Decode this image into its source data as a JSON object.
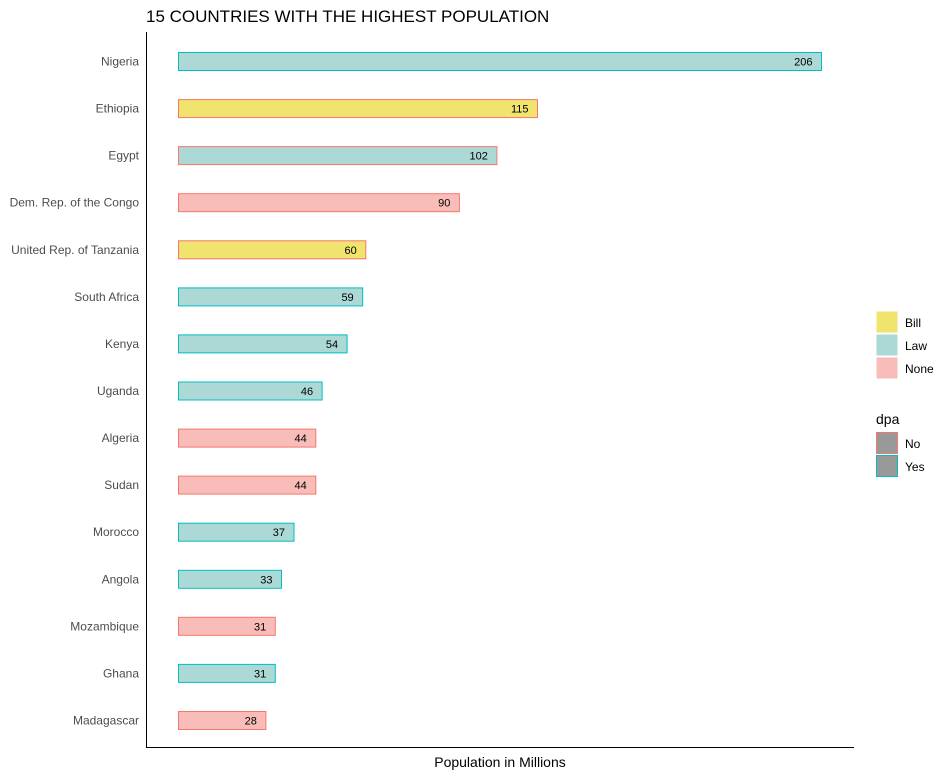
{
  "chart_data": {
    "type": "bar",
    "orientation": "horizontal",
    "title": "15 COUNTRIES WITH THE HIGHEST POPULATION",
    "xlabel": "Population in Millions",
    "ylabel": "",
    "xlim": [
      0,
      220
    ],
    "grid": false,
    "legend_position": "right",
    "categories": [
      "Nigeria",
      "Ethiopia",
      "Egypt",
      "Dem. Rep. of the Congo",
      "United Rep. of Tanzania",
      "South Africa",
      "Kenya",
      "Uganda",
      "Algeria",
      "Sudan",
      "Morocco",
      "Angola",
      "Mozambique",
      "Ghana",
      "Madagascar"
    ],
    "values": [
      206,
      115,
      102,
      90,
      60,
      59,
      54,
      46,
      44,
      44,
      37,
      33,
      31,
      31,
      28
    ],
    "fill_group": [
      "Law",
      "Bill",
      "Law",
      "None",
      "Bill",
      "Law",
      "Law",
      "Law",
      "None",
      "None",
      "Law",
      "Law",
      "None",
      "Law",
      "None"
    ],
    "outline_group": [
      "Yes",
      "No",
      "No",
      "No",
      "No",
      "Yes",
      "Yes",
      "Yes",
      "No",
      "No",
      "Yes",
      "Yes",
      "No",
      "Yes",
      "No"
    ],
    "fill_legend": {
      "title": "",
      "entries": [
        {
          "label": "Bill",
          "color": "#f0e36e"
        },
        {
          "label": "Law",
          "color": "#acd9d6"
        },
        {
          "label": "None",
          "color": "#f9bdb9"
        }
      ]
    },
    "outline_legend": {
      "title": "dpa",
      "entries": [
        {
          "label": "No",
          "color": "#f8766d"
        },
        {
          "label": "Yes",
          "color": "#00bfc4"
        }
      ]
    },
    "legend_swatch_fill": "#999999"
  }
}
